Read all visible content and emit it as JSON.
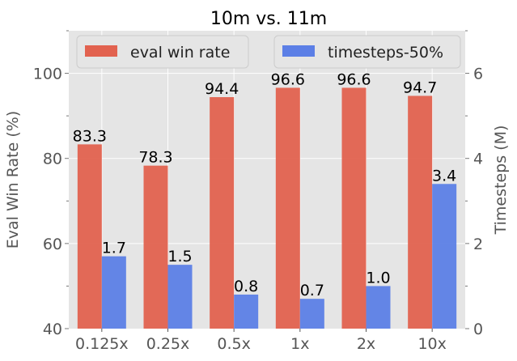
{
  "chart_data": {
    "type": "bar",
    "title": "10m vs. 11m",
    "categories": [
      "0.125x",
      "0.25x",
      "0.5x",
      "1x",
      "2x",
      "10x"
    ],
    "series": [
      {
        "name": "eval win rate",
        "axis": "left",
        "color": "#e2624f",
        "values": [
          83.3,
          78.3,
          94.4,
          96.6,
          96.6,
          94.7
        ],
        "labels": [
          "83.3",
          "78.3",
          "94.4",
          "96.6",
          "96.6",
          "94.7"
        ]
      },
      {
        "name": "timesteps-50%",
        "axis": "right",
        "color": "#5c7fe6",
        "values": [
          1.7,
          1.5,
          0.8,
          0.7,
          1.0,
          3.4
        ],
        "labels": [
          "1.7",
          "1.5",
          "0.8",
          "0.7",
          "1.0",
          "3.4"
        ]
      }
    ],
    "ylabel": "Eval Win Rate (%)",
    "y2label": "Timesteps (M)",
    "ylim": [
      40,
      110
    ],
    "y2lim": [
      0,
      7
    ],
    "yticks": [
      40,
      60,
      80,
      100
    ],
    "y2ticks": [
      0,
      2,
      4,
      6
    ],
    "grid": true,
    "legend_placement": "top",
    "background": "#e5e5e5"
  }
}
